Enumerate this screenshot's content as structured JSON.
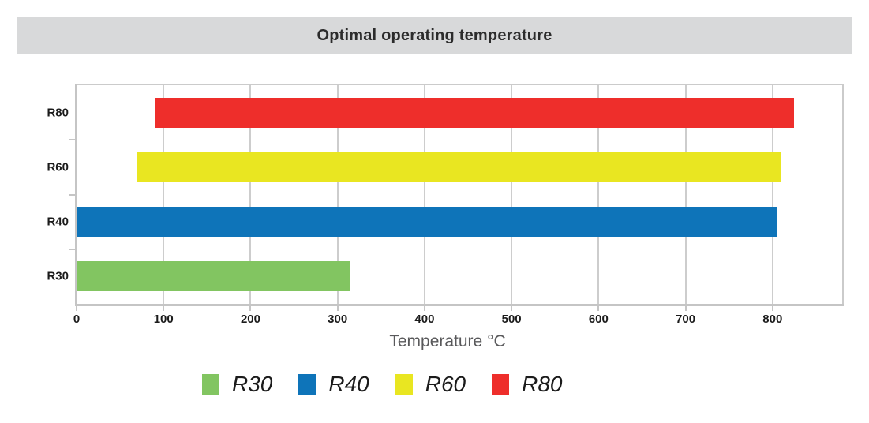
{
  "chart": {
    "title": "Optimal operating temperature",
    "xlabel": "Temperature °C"
  },
  "chart_data": {
    "type": "bar",
    "orientation": "horizontal",
    "title": "Optimal operating temperature",
    "xlabel": "Temperature °C",
    "ylabel": "",
    "categories": [
      "R80",
      "R60",
      "R40",
      "R30"
    ],
    "rows": [
      {
        "category": "R80",
        "start": 90,
        "end": 825,
        "color": "#EE2E2B"
      },
      {
        "category": "R60",
        "start": 70,
        "end": 810,
        "color": "#E9E621"
      },
      {
        "category": "R40",
        "start": 0,
        "end": 805,
        "color": "#0E74B9"
      },
      {
        "category": "R30",
        "start": 0,
        "end": 315,
        "color": "#82C561"
      }
    ],
    "x_ticks": [
      0,
      100,
      200,
      300,
      400,
      500,
      600,
      700,
      800
    ],
    "xlim": [
      0,
      880
    ],
    "grid": true,
    "legend": {
      "position": "bottom",
      "items": [
        {
          "label": "R30",
          "color": "#82C561"
        },
        {
          "label": "R40",
          "color": "#0E74B9"
        },
        {
          "label": "R60",
          "color": "#E9E621"
        },
        {
          "label": "R80",
          "color": "#EE2E2B"
        }
      ]
    }
  }
}
